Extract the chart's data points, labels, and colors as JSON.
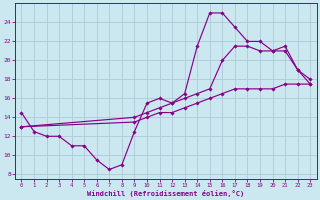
{
  "background_color": "#cbe8f0",
  "grid_color": "#b0c8d8",
  "line_color": "#880088",
  "marker_color": "#880088",
  "xlabel": "Windchill (Refroidissement éolien,°C)",
  "xlim": [
    -0.5,
    23.5
  ],
  "ylim": [
    7.5,
    26.0
  ],
  "yticks": [
    8,
    10,
    12,
    14,
    16,
    18,
    20,
    22,
    24
  ],
  "xticks": [
    0,
    1,
    2,
    3,
    4,
    5,
    6,
    7,
    8,
    9,
    10,
    11,
    12,
    13,
    14,
    15,
    16,
    17,
    18,
    19,
    20,
    21,
    22,
    23
  ],
  "curve1_x": [
    0,
    1,
    2,
    3,
    4,
    5,
    6,
    7,
    8,
    9,
    10,
    11,
    12,
    13,
    14,
    15,
    16,
    17,
    18,
    19,
    20,
    21,
    22,
    23
  ],
  "curve1_y": [
    14.5,
    12.5,
    12.0,
    12.0,
    11.0,
    11.0,
    9.5,
    8.5,
    9.0,
    12.5,
    15.5,
    16.0,
    15.5,
    16.5,
    21.5,
    25.0,
    25.0,
    23.5,
    22.0,
    22.0,
    21.0,
    21.0,
    19.0,
    17.5
  ],
  "curve2_x": [
    0,
    9,
    10,
    11,
    12,
    13,
    14,
    15,
    16,
    17,
    18,
    19,
    20,
    21,
    22,
    23
  ],
  "curve2_y": [
    13.0,
    14.0,
    14.5,
    15.0,
    15.5,
    16.0,
    16.5,
    17.0,
    20.0,
    21.5,
    21.5,
    21.0,
    21.0,
    21.5,
    19.0,
    18.0
  ],
  "curve3_x": [
    0,
    9,
    10,
    11,
    12,
    13,
    14,
    15,
    16,
    17,
    18,
    19,
    20,
    21,
    22,
    23
  ],
  "curve3_y": [
    13.0,
    13.5,
    14.0,
    14.5,
    14.5,
    15.0,
    15.5,
    16.0,
    16.5,
    17.0,
    17.0,
    17.0,
    17.0,
    17.5,
    17.5,
    17.5
  ]
}
